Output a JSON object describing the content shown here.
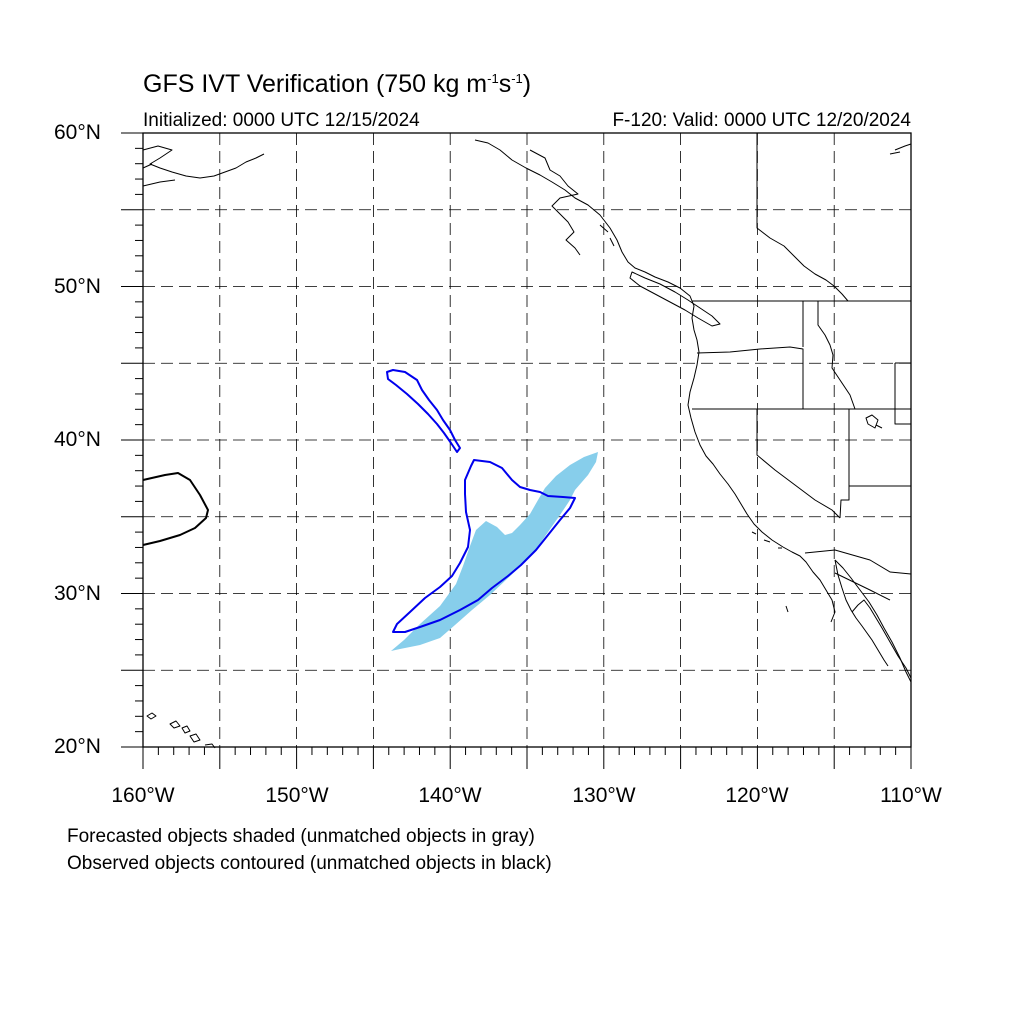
{
  "header": {
    "title_main": "GFS IVT Verification (750 kg m",
    "title_exp1": "-1",
    "title_mid": "s",
    "title_exp2": "-1",
    "title_end": ")",
    "initialized": "Initialized: 0000 UTC 12/15/2024",
    "valid": "F-120: Valid: 0000 UTC 12/20/2024"
  },
  "axes": {
    "lat_labels": [
      "60°N",
      "50°N",
      "40°N",
      "30°N",
      "20°N"
    ],
    "lon_labels": [
      "160°W",
      "150°W",
      "140°W",
      "130°W",
      "120°W",
      "110°W"
    ],
    "lat_range": [
      20,
      60
    ],
    "lon_range": [
      -160,
      -110
    ],
    "grid_spacing_deg": 5,
    "grid": "dashed"
  },
  "legend": {
    "line1": "Forecasted objects shaded (unmatched objects in gray)",
    "line2": "Observed objects contoured (unmatched objects in black)"
  },
  "colors": {
    "forecast_matched_fill": "#87CEEB",
    "observed_matched_contour": "#0000EE",
    "observed_unmatched_contour": "#000000",
    "coastline": "#000000"
  }
}
